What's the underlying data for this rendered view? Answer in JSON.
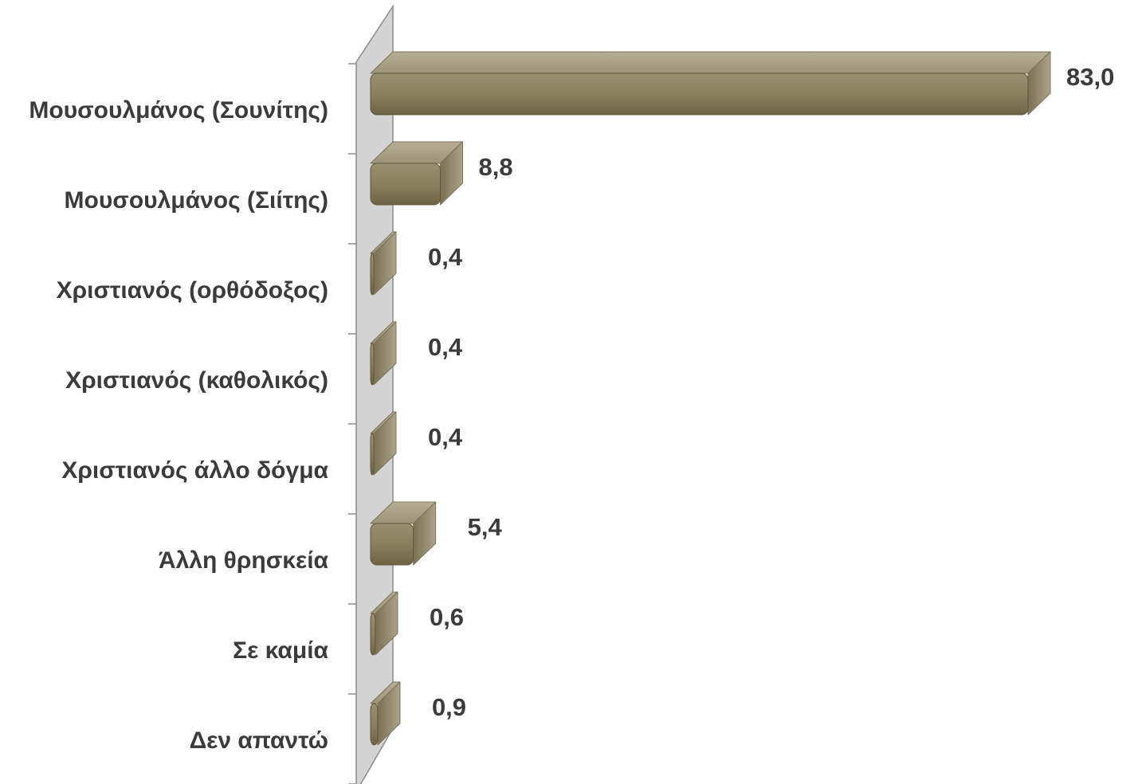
{
  "chart_data": {
    "type": "bar",
    "orientation": "horizontal",
    "style": "3d",
    "categories": [
      "Μουσουλμάνος (Σουνίτης)",
      "Μουσουλμάνος (Σιίτης)",
      "Χριστιανός (ορθόδοξος)",
      "Χριστιανός (καθολικός)",
      "Χριστιανός άλλο δόγμα",
      "Άλλη θρησκεία",
      "Σε καμία",
      "Δεν απαντώ"
    ],
    "values": [
      83.0,
      8.8,
      0.4,
      0.4,
      0.4,
      5.4,
      0.6,
      0.9
    ],
    "value_labels": [
      "83,0",
      "8,8",
      "0,4",
      "0,4",
      "0,4",
      "5,4",
      "0,6",
      "0,9"
    ],
    "xlim": [
      0,
      83.0
    ],
    "grid": false,
    "legend": "none",
    "colors": {
      "bar_front": "#8a7f5f",
      "bar_top": "#a59d82",
      "bar_side": "#6f6647",
      "wall": "#d3d3d3",
      "wall_stroke": "#8c8c8c",
      "text": "#3b3b3b"
    }
  }
}
